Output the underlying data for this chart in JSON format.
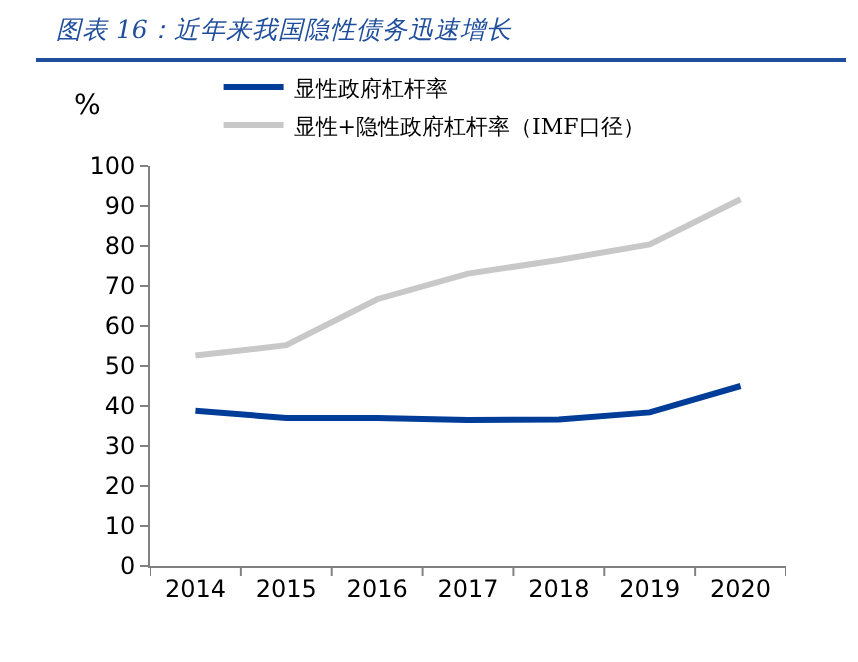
{
  "chart_data": {
    "type": "line",
    "title": "图表 16：近年来我国隐性债务迅速增长",
    "ylabel": "%",
    "categories": [
      "2014",
      "2015",
      "2016",
      "2017",
      "2018",
      "2019",
      "2020"
    ],
    "series": [
      {
        "name": "显性政府杠杆率",
        "color": "#003d99",
        "values": [
          38.8,
          37.0,
          37.0,
          36.5,
          36.6,
          38.4,
          45.0
        ]
      },
      {
        "name": "显性+隐性政府杠杆率（IMF口径）",
        "color": "#c8c8c8",
        "values": [
          52.6,
          55.2,
          66.7,
          73.1,
          76.5,
          80.4,
          91.7
        ]
      }
    ],
    "ylim": [
      0,
      100
    ],
    "yticks": [
      0,
      10,
      20,
      30,
      40,
      50,
      60,
      70,
      80,
      90,
      100
    ],
    "grid": false,
    "legend": "top",
    "marker": "none",
    "line_style": "solid"
  }
}
